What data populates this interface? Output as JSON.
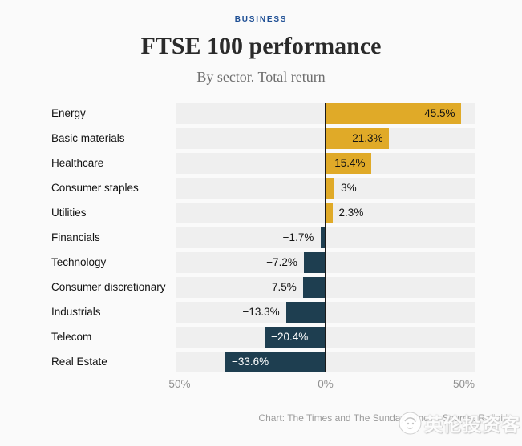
{
  "header": {
    "kicker": "BUSINESS",
    "title": "FTSE 100 performance",
    "subtitle": "By sector. Total return"
  },
  "chart_data": {
    "type": "bar",
    "orientation": "horizontal",
    "title": "FTSE 100 performance",
    "subtitle": "By sector. Total return",
    "categories": [
      "Energy",
      "Basic materials",
      "Healthcare",
      "Consumer staples",
      "Utilities",
      "Financials",
      "Technology",
      "Consumer discretionary",
      "Industrials",
      "Telecom",
      "Real Estate"
    ],
    "values": [
      45.5,
      21.3,
      15.4,
      3,
      2.3,
      -1.7,
      -7.2,
      -7.5,
      -13.3,
      -20.4,
      -33.6
    ],
    "value_labels": [
      "45.5%",
      "21.3%",
      "15.4%",
      "3%",
      "2.3%",
      "−1.7%",
      "−7.2%",
      "−7.5%",
      "−13.3%",
      "−20.4%",
      "−33.6%"
    ],
    "xlim": [
      -50,
      50
    ],
    "x_ticks": [
      "−50%",
      "0%",
      "50%"
    ],
    "x_tick_values": [
      -50,
      0,
      50
    ],
    "grid": false,
    "legend": "none",
    "positive_color": "#e0aa28",
    "negative_color": "#1e3e50",
    "band_color": "#efefef",
    "zero_line_color": "#1a1a1a"
  },
  "footer": {
    "credit": "Chart: The Times and The Sunday Times • Source: Refinitiv"
  },
  "watermark": {
    "text": "英伦投资客",
    "logo": "mascot-circle-icon"
  }
}
